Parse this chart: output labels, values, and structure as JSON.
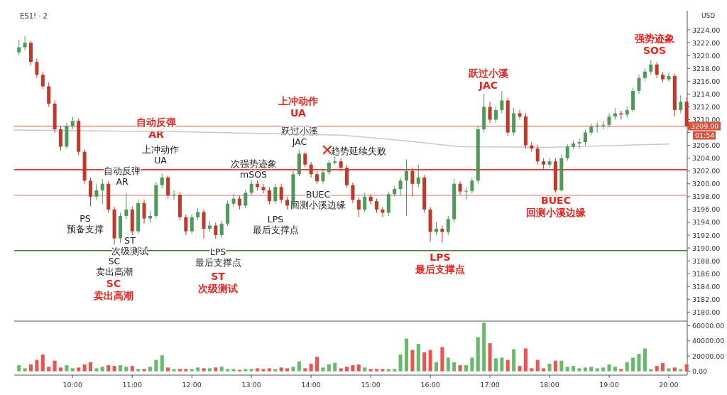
{
  "chart_data": [
    {
      "type": "candlestick",
      "title": "ES1! · 2",
      "x": [
        9.1,
        9.2,
        9.3,
        9.4,
        9.5,
        9.6,
        9.7,
        9.8,
        9.9,
        10.0,
        10.1,
        10.2,
        10.3,
        10.4,
        10.5,
        10.6,
        10.7,
        10.8,
        10.9,
        11.0,
        11.1,
        11.2,
        11.3,
        11.4,
        11.5,
        11.6,
        11.7,
        11.8,
        11.9,
        12.0,
        12.1,
        12.2,
        12.3,
        12.4,
        12.5,
        12.6,
        12.7,
        12.8,
        12.9,
        13.0,
        13.1,
        13.2,
        13.3,
        13.4,
        13.5,
        13.6,
        13.7,
        13.8,
        13.9,
        14.0,
        14.1,
        14.2,
        14.3,
        14.4,
        14.5,
        14.6,
        14.7,
        14.8,
        14.9,
        15.0,
        15.1,
        15.2,
        15.3,
        15.4,
        15.5,
        15.6,
        15.7,
        15.8,
        15.9,
        16.0,
        16.1,
        16.2,
        16.3,
        16.4,
        16.5,
        16.6,
        16.7,
        16.8,
        16.9,
        17.0,
        17.1,
        17.2,
        17.3,
        17.4,
        17.5,
        17.6,
        17.7,
        17.8,
        17.9,
        18.0,
        18.1,
        18.2,
        18.3,
        18.4,
        18.5,
        18.6,
        18.7,
        18.8,
        18.9,
        19.0,
        19.1,
        19.2,
        19.3,
        19.4,
        19.5,
        19.6,
        19.7,
        19.8,
        19.9,
        20.0,
        20.1,
        20.2,
        20.3
      ],
      "ohlc": [
        [
          3220.5,
          3222.5,
          3220,
          3221.3
        ],
        [
          3221.3,
          3223,
          3220.8,
          3222
        ],
        [
          3222,
          3222.3,
          3218.5,
          3219
        ],
        [
          3219,
          3219.5,
          3216.5,
          3217
        ],
        [
          3217,
          3217.5,
          3214.8,
          3215.2
        ],
        [
          3215.2,
          3215.8,
          3212,
          3212.5
        ],
        [
          3212.5,
          3213,
          3208,
          3208.5
        ],
        [
          3208.5,
          3209,
          3205.2,
          3205.8
        ],
        [
          3205.8,
          3209.5,
          3205.5,
          3209
        ],
        [
          3209,
          3210.5,
          3208.5,
          3209.8
        ],
        [
          3209.8,
          3210.2,
          3204.5,
          3205
        ],
        [
          3205,
          3205.4,
          3200,
          3200.5
        ],
        [
          3200.5,
          3201,
          3196.5,
          3198
        ],
        [
          3198,
          3200,
          3197.5,
          3199
        ],
        [
          3199,
          3200.8,
          3196.8,
          3200
        ],
        [
          3200,
          3200.4,
          3195.5,
          3196
        ],
        [
          3196,
          3196.4,
          3190.5,
          3191.5
        ],
        [
          3191.5,
          3195.5,
          3190.8,
          3195
        ],
        [
          3195,
          3198.6,
          3194.5,
          3196
        ],
        [
          3196,
          3196.5,
          3192,
          3192.6
        ],
        [
          3192.6,
          3197.6,
          3192.2,
          3197
        ],
        [
          3197,
          3197.5,
          3193.8,
          3194.6
        ],
        [
          3194.6,
          3195.8,
          3194,
          3195
        ],
        [
          3195,
          3200.3,
          3194.6,
          3199.8
        ],
        [
          3199.8,
          3201.6,
          3199.3,
          3201
        ],
        [
          3201,
          3201.3,
          3197.7,
          3198.2
        ],
        [
          3198.2,
          3199,
          3197.5,
          3198.3
        ],
        [
          3198.3,
          3198.7,
          3194.3,
          3194.8
        ],
        [
          3194.8,
          3195.2,
          3192,
          3192.6
        ],
        [
          3192.6,
          3195.3,
          3192.2,
          3194.8
        ],
        [
          3194.8,
          3196.2,
          3194.3,
          3195.6
        ],
        [
          3195.6,
          3196,
          3191.5,
          3193
        ],
        [
          3193,
          3194.2,
          3192.5,
          3193.5
        ],
        [
          3193.5,
          3194,
          3191.4,
          3192
        ],
        [
          3192,
          3194.3,
          3191.6,
          3193.8
        ],
        [
          3193.8,
          3197.4,
          3193.4,
          3196.9
        ],
        [
          3196.9,
          3198.4,
          3196.4,
          3197.7
        ],
        [
          3197.7,
          3198.1,
          3196,
          3196.6
        ],
        [
          3196.6,
          3199.1,
          3196.2,
          3198.6
        ],
        [
          3198.6,
          3200.6,
          3198.2,
          3200
        ],
        [
          3200,
          3200.5,
          3199,
          3199.5
        ],
        [
          3199.5,
          3200,
          3198.5,
          3199
        ],
        [
          3199,
          3199.5,
          3196.8,
          3197.3
        ],
        [
          3197.3,
          3200,
          3196.9,
          3199.5
        ],
        [
          3199.5,
          3200,
          3197,
          3197.5
        ],
        [
          3197.5,
          3198,
          3196,
          3196.6
        ],
        [
          3196.6,
          3202,
          3196.3,
          3201.5
        ],
        [
          3201.5,
          3205.3,
          3201.2,
          3204.7
        ],
        [
          3204.7,
          3205,
          3202.6,
          3203
        ],
        [
          3203,
          3203.4,
          3201,
          3201.5
        ],
        [
          3201.5,
          3202,
          3200,
          3200.4
        ],
        [
          3200.4,
          3202.2,
          3200,
          3201.8
        ],
        [
          3201.8,
          3203.7,
          3201.4,
          3203.3
        ],
        [
          3203.3,
          3204.3,
          3203,
          3203.5
        ],
        [
          3203.5,
          3204,
          3202,
          3202.5
        ],
        [
          3202.5,
          3202.9,
          3199.4,
          3199.8
        ],
        [
          3199.8,
          3200.2,
          3197,
          3197.5
        ],
        [
          3197.5,
          3197.9,
          3194.8,
          3196
        ],
        [
          3196,
          3198.6,
          3195.6,
          3198
        ],
        [
          3198,
          3198.4,
          3196.8,
          3197.3
        ],
        [
          3197.3,
          3197.7,
          3195.5,
          3196
        ],
        [
          3196,
          3196.4,
          3194.8,
          3195.5
        ],
        [
          3195.5,
          3198.8,
          3195,
          3198.4
        ],
        [
          3198.4,
          3199.6,
          3198,
          3199.2
        ],
        [
          3199.2,
          3201,
          3198.2,
          3200.5
        ],
        [
          3200.5,
          3203.8,
          3195,
          3202
        ],
        [
          3202,
          3202.5,
          3198,
          3200
        ],
        [
          3200,
          3203,
          3199.5,
          3201
        ],
        [
          3201,
          3201.4,
          3195.5,
          3196
        ],
        [
          3196,
          3196.4,
          3191,
          3192.5
        ],
        [
          3192.5,
          3194,
          3192,
          3193
        ],
        [
          3193,
          3193.5,
          3190.8,
          3192.5
        ],
        [
          3192.5,
          3195,
          3192,
          3194.5
        ],
        [
          3194.5,
          3200.8,
          3194,
          3200
        ],
        [
          3200,
          3200.4,
          3198.3,
          3198.8
        ],
        [
          3198.8,
          3199.5,
          3197.5,
          3198.9
        ],
        [
          3198.9,
          3201,
          3198.5,
          3200.5
        ],
        [
          3200.5,
          3209,
          3200,
          3208.5
        ],
        [
          3208.5,
          3214,
          3208,
          3212
        ],
        [
          3212,
          3212.8,
          3209.5,
          3210
        ],
        [
          3210,
          3212,
          3209.5,
          3211.5
        ],
        [
          3211.5,
          3214.5,
          3211,
          3213
        ],
        [
          3213,
          3213.4,
          3207.5,
          3208
        ],
        [
          3208,
          3211.8,
          3207.6,
          3211
        ],
        [
          3211,
          3211.5,
          3210,
          3210.5
        ],
        [
          3210.5,
          3211,
          3205.5,
          3206
        ],
        [
          3206,
          3206.5,
          3205,
          3205.5
        ],
        [
          3205.5,
          3206,
          3203,
          3203.5
        ],
        [
          3203.5,
          3204,
          3202.3,
          3203
        ],
        [
          3203,
          3204,
          3202.5,
          3203.5
        ],
        [
          3203.5,
          3204,
          3198.6,
          3199
        ],
        [
          3199,
          3204.5,
          3198.8,
          3204
        ],
        [
          3204,
          3206.2,
          3203.6,
          3205.8
        ],
        [
          3205.8,
          3206.8,
          3205.4,
          3206.3
        ],
        [
          3206.3,
          3207,
          3205.5,
          3206.5
        ],
        [
          3206.5,
          3208.4,
          3206,
          3208
        ],
        [
          3208,
          3209.4,
          3207.6,
          3208.9
        ],
        [
          3208.9,
          3209.6,
          3208,
          3209.1
        ],
        [
          3209.1,
          3209.8,
          3208.5,
          3209.2
        ],
        [
          3209.2,
          3211,
          3208.8,
          3210.5
        ],
        [
          3210.5,
          3211.8,
          3210,
          3211
        ],
        [
          3211,
          3211.4,
          3210,
          3210.8
        ],
        [
          3210.8,
          3212,
          3210.3,
          3211.5
        ],
        [
          3211.5,
          3215,
          3211.2,
          3214.5
        ],
        [
          3214.5,
          3217,
          3214,
          3216.5
        ],
        [
          3216.5,
          3218,
          3216,
          3217.5
        ],
        [
          3217.5,
          3219.3,
          3217,
          3218.6
        ],
        [
          3218.6,
          3219,
          3216.5,
          3217
        ],
        [
          3217,
          3217.4,
          3215.8,
          3216.3
        ],
        [
          3216.3,
          3217.3,
          3215.9,
          3216.8
        ],
        [
          3216.8,
          3217.2,
          3210.5,
          3211.5
        ],
        [
          3211.5,
          3213.8,
          3211,
          3212.8
        ],
        [
          3212.8,
          3213.5,
          3208.8,
          3209
        ]
      ],
      "colors": [
        "#4e9a5b",
        "#4e9a5b",
        "#c0392b",
        "#c0392b",
        "#c0392b",
        "#c0392b",
        "#c0392b",
        "#c0392b",
        "#4e9a5b",
        "#4e9a5b",
        "#c0392b",
        "#c0392b",
        "#c0392b",
        "#4e9a5b",
        "#4e9a5b",
        "#c0392b",
        "#c0392b",
        "#4e9a5b",
        "#4e9a5b",
        "#c0392b",
        "#4e9a5b",
        "#c0392b",
        "#4e9a5b",
        "#4e9a5b",
        "#4e9a5b",
        "#c0392b",
        "#4e9a5b",
        "#c0392b",
        "#c0392b",
        "#4e9a5b",
        "#4e9a5b",
        "#c0392b",
        "#4e9a5b",
        "#c0392b",
        "#4e9a5b",
        "#4e9a5b",
        "#4e9a5b",
        "#c0392b",
        "#4e9a5b",
        "#4e9a5b",
        "#c0392b",
        "#c0392b",
        "#c0392b",
        "#4e9a5b",
        "#c0392b",
        "#c0392b",
        "#4e9a5b",
        "#4e9a5b",
        "#c0392b",
        "#c0392b",
        "#c0392b",
        "#4e9a5b",
        "#4e9a5b",
        "#4e9a5b",
        "#c0392b",
        "#c0392b",
        "#c0392b",
        "#c0392b",
        "#4e9a5b",
        "#c0392b",
        "#c0392b",
        "#c0392b",
        "#4e9a5b",
        "#4e9a5b",
        "#4e9a5b",
        "#4e9a5b",
        "#c0392b",
        "#4e9a5b",
        "#c0392b",
        "#c0392b",
        "#4e9a5b",
        "#c0392b",
        "#4e9a5b",
        "#4e9a5b",
        "#c0392b",
        "#4e9a5b",
        "#4e9a5b",
        "#4e9a5b",
        "#4e9a5b",
        "#c0392b",
        "#4e9a5b",
        "#4e9a5b",
        "#c0392b",
        "#4e9a5b",
        "#c0392b",
        "#c0392b",
        "#c0392b",
        "#c0392b",
        "#c0392b",
        "#4e9a5b",
        "#c0392b",
        "#4e9a5b",
        "#4e9a5b",
        "#4e9a5b",
        "#4e9a5b",
        "#4e9a5b",
        "#4e9a5b",
        "#4e9a5b",
        "#4e9a5b",
        "#4e9a5b",
        "#4e9a5b",
        "#c0392b",
        "#4e9a5b",
        "#4e9a5b",
        "#4e9a5b",
        "#4e9a5b",
        "#4e9a5b",
        "#c0392b",
        "#c0392b",
        "#4e9a5b",
        "#c0392b",
        "#4e9a5b",
        "#c0392b"
      ],
      "series": [
        {
          "type": "line",
          "color": "#c8c8c8",
          "x": [
            9.02,
            12.0,
            14.5,
            15.5,
            16.5,
            18.0,
            20.0
          ],
          "values": [
            3208.4,
            3208.1,
            3207.6,
            3206.8,
            3205.8,
            3205.7,
            3206.2
          ]
        }
      ],
      "xlim": [
        9.02,
        20.31
      ],
      "ylim": [
        3178.6,
        3227
      ],
      "yticks": [
        {
          "value": 3180,
          "label": "3180.00"
        },
        {
          "value": 3182,
          "label": "3182.00"
        },
        {
          "value": 3184,
          "label": "3184.00"
        },
        {
          "value": 3186,
          "label": "3186.00"
        },
        {
          "value": 3188,
          "label": "3188.00"
        },
        {
          "value": 3190,
          "label": "3190.00"
        },
        {
          "value": 3192,
          "label": "3192.00"
        },
        {
          "value": 3194,
          "label": "3194.00"
        },
        {
          "value": 3196,
          "label": "3196.00"
        },
        {
          "value": 3198,
          "label": "3198.00"
        },
        {
          "value": 3200,
          "label": "3200.00"
        },
        {
          "value": 3202,
          "label": "3202.00"
        },
        {
          "value": 3204,
          "label": "3204.00"
        },
        {
          "value": 3206,
          "label": "3206.00"
        },
        {
          "value": 3208,
          "label": null
        },
        {
          "value": 3210,
          "label": "3210.00"
        },
        {
          "value": 3212,
          "label": "3212.00"
        },
        {
          "value": 3214,
          "label": "3214.00"
        },
        {
          "value": 3216,
          "label": "3216.00"
        },
        {
          "value": 3218,
          "label": "3218.00"
        },
        {
          "value": 3220,
          "label": "3220.00"
        },
        {
          "value": 3222,
          "label": "3222.00"
        },
        {
          "value": 3224,
          "label": "3224.00"
        }
      ],
      "tick_labels": "y",
      "ref_lines": [
        {
          "axis": "y",
          "value": 3202.2,
          "color": "#e53935"
        },
        {
          "axis": "y",
          "value": 3198.2,
          "color": "#f19a9a"
        },
        {
          "axis": "y",
          "value": 3189.6,
          "color": "#4a7c3a"
        },
        {
          "axis": "y",
          "value": 3209,
          "label": "3209.00",
          "color": "#d9533c"
        }
      ],
      "annotations": [
        "USD",
        "01:54",
        "PS\n预备支撑",
        "ST\n次级测试",
        "SC\n卖出高潮",
        "SC\n卖出高潮",
        "自动反弹\nAR",
        "自动反弹\nAR",
        "上冲动作\nUA",
        "LPS\n最后支撑点",
        "ST\n次级测试",
        "次强势迹象\nmSOS",
        "LPS\n最后支撑点",
        "跃过小溪\nJAC",
        "上冲动作\nUA",
        "BUEC\n回测小溪边缘",
        "✕",
        "趋势延续失败",
        "LPS\n最后支撑点",
        "跃过小溪\nJAC",
        "BUEC\n回测小溪边缘",
        "强势迹象\nSOS"
      ]
    },
    {
      "type": "bar",
      "x": [
        9.1,
        9.2,
        9.3,
        9.4,
        9.5,
        9.6,
        9.7,
        9.8,
        9.9,
        10.0,
        10.1,
        10.2,
        10.3,
        10.4,
        10.5,
        10.6,
        10.7,
        10.8,
        10.9,
        11.0,
        11.1,
        11.2,
        11.3,
        11.4,
        11.5,
        11.6,
        11.7,
        11.8,
        11.9,
        12.0,
        12.1,
        12.2,
        12.3,
        12.4,
        12.5,
        12.6,
        12.7,
        12.8,
        12.9,
        13.0,
        13.1,
        13.2,
        13.3,
        13.4,
        13.5,
        13.6,
        13.7,
        13.8,
        13.9,
        14.0,
        14.1,
        14.2,
        14.3,
        14.4,
        14.5,
        14.6,
        14.7,
        14.8,
        14.9,
        15.0,
        15.1,
        15.2,
        15.3,
        15.4,
        15.5,
        15.6,
        15.7,
        15.8,
        15.9,
        16.0,
        16.1,
        16.2,
        16.3,
        16.4,
        16.5,
        16.6,
        16.7,
        16.8,
        16.9,
        17.0,
        17.1,
        17.2,
        17.3,
        17.4,
        17.5,
        17.6,
        17.7,
        17.8,
        17.9,
        18.0,
        18.1,
        18.2,
        18.3,
        18.4,
        18.5,
        18.6,
        18.7,
        18.8,
        18.9,
        19.0,
        19.1,
        19.2,
        19.3,
        19.4,
        19.5,
        19.6,
        19.7,
        19.8,
        19.9,
        20.0,
        20.1,
        20.2,
        20.3
      ],
      "values": [
        8000,
        4000,
        9000,
        15000,
        22000,
        6000,
        14000,
        5000,
        8000,
        4000,
        5000,
        9000,
        12000,
        4000,
        6000,
        8000,
        7000,
        8000,
        6000,
        7000,
        3000,
        3000,
        6000,
        15000,
        21000,
        5000,
        3000,
        3000,
        3000,
        3000,
        5000,
        4000,
        4000,
        5000,
        6000,
        3000,
        3000,
        2000,
        3000,
        3000,
        4000,
        3000,
        4000,
        3000,
        5000,
        4000,
        6000,
        13000,
        4000,
        10000,
        19000,
        5000,
        9000,
        11000,
        4000,
        6000,
        8000,
        9000,
        5000,
        3000,
        3000,
        3000,
        3000,
        3000,
        22000,
        43000,
        28000,
        36000,
        25000,
        28000,
        12000,
        32000,
        18000,
        12000,
        8000,
        8000,
        18000,
        45000,
        64000,
        37000,
        17000,
        18000,
        15000,
        29000,
        7000,
        30000,
        4000,
        15000,
        4000,
        10000,
        14000,
        14000,
        6000,
        7000,
        4000,
        5000,
        6000,
        4000,
        5000,
        9000,
        6000,
        3000,
        12000,
        18000,
        23000,
        30000,
        3000,
        7000,
        11000,
        4000,
        5000,
        3000,
        9000
      ],
      "colors": [
        "#66bb6a",
        "#66bb6a",
        "#ef5350",
        "#ef5350",
        "#ef5350",
        "#ef5350",
        "#ef5350",
        "#ef5350",
        "#66bb6a",
        "#66bb6a",
        "#ef5350",
        "#ef5350",
        "#ef5350",
        "#66bb6a",
        "#66bb6a",
        "#ef5350",
        "#ef5350",
        "#66bb6a",
        "#66bb6a",
        "#ef5350",
        "#66bb6a",
        "#ef5350",
        "#66bb6a",
        "#66bb6a",
        "#66bb6a",
        "#ef5350",
        "#66bb6a",
        "#ef5350",
        "#ef5350",
        "#66bb6a",
        "#66bb6a",
        "#ef5350",
        "#66bb6a",
        "#ef5350",
        "#66bb6a",
        "#66bb6a",
        "#66bb6a",
        "#ef5350",
        "#66bb6a",
        "#66bb6a",
        "#ef5350",
        "#ef5350",
        "#ef5350",
        "#66bb6a",
        "#ef5350",
        "#ef5350",
        "#66bb6a",
        "#66bb6a",
        "#ef5350",
        "#ef5350",
        "#ef5350",
        "#66bb6a",
        "#66bb6a",
        "#66bb6a",
        "#ef5350",
        "#ef5350",
        "#ef5350",
        "#ef5350",
        "#66bb6a",
        "#ef5350",
        "#ef5350",
        "#ef5350",
        "#66bb6a",
        "#66bb6a",
        "#66bb6a",
        "#66bb6a",
        "#ef5350",
        "#66bb6a",
        "#ef5350",
        "#ef5350",
        "#66bb6a",
        "#ef5350",
        "#66bb6a",
        "#66bb6a",
        "#ef5350",
        "#66bb6a",
        "#66bb6a",
        "#66bb6a",
        "#66bb6a",
        "#ef5350",
        "#66bb6a",
        "#66bb6a",
        "#ef5350",
        "#66bb6a",
        "#ef5350",
        "#ef5350",
        "#ef5350",
        "#ef5350",
        "#ef5350",
        "#66bb6a",
        "#ef5350",
        "#66bb6a",
        "#66bb6a",
        "#66bb6a",
        "#66bb6a",
        "#66bb6a",
        "#66bb6a",
        "#66bb6a",
        "#66bb6a",
        "#66bb6a",
        "#66bb6a",
        "#ef5350",
        "#66bb6a",
        "#66bb6a",
        "#66bb6a",
        "#66bb6a",
        "#66bb6a",
        "#ef5350",
        "#ef5350",
        "#66bb6a",
        "#ef5350",
        "#66bb6a",
        "#ef5350"
      ],
      "xlim": [
        9.02,
        20.31
      ],
      "ylim": [
        -5000,
        66000
      ],
      "yticks": [
        {
          "value": 0,
          "label": "0.00"
        },
        {
          "value": 20000,
          "label": "20000.00"
        },
        {
          "value": 40000,
          "label": "40000.00"
        },
        {
          "value": 60000,
          "label": "60000.00"
        }
      ],
      "xticks": [
        {
          "value": 10,
          "label": "10:00"
        },
        {
          "value": 11,
          "label": "11:00"
        },
        {
          "value": 12,
          "label": "12:00"
        },
        {
          "value": 13,
          "label": "13:00"
        },
        {
          "value": 14,
          "label": "14:00"
        },
        {
          "value": 15,
          "label": "15:00"
        },
        {
          "value": 16,
          "label": "16:00"
        },
        {
          "value": 17,
          "label": "17:00"
        },
        {
          "value": 18,
          "label": "18:00"
        },
        {
          "value": 19,
          "label": "19:00"
        },
        {
          "value": 20,
          "label": "20:00"
        }
      ]
    }
  ]
}
